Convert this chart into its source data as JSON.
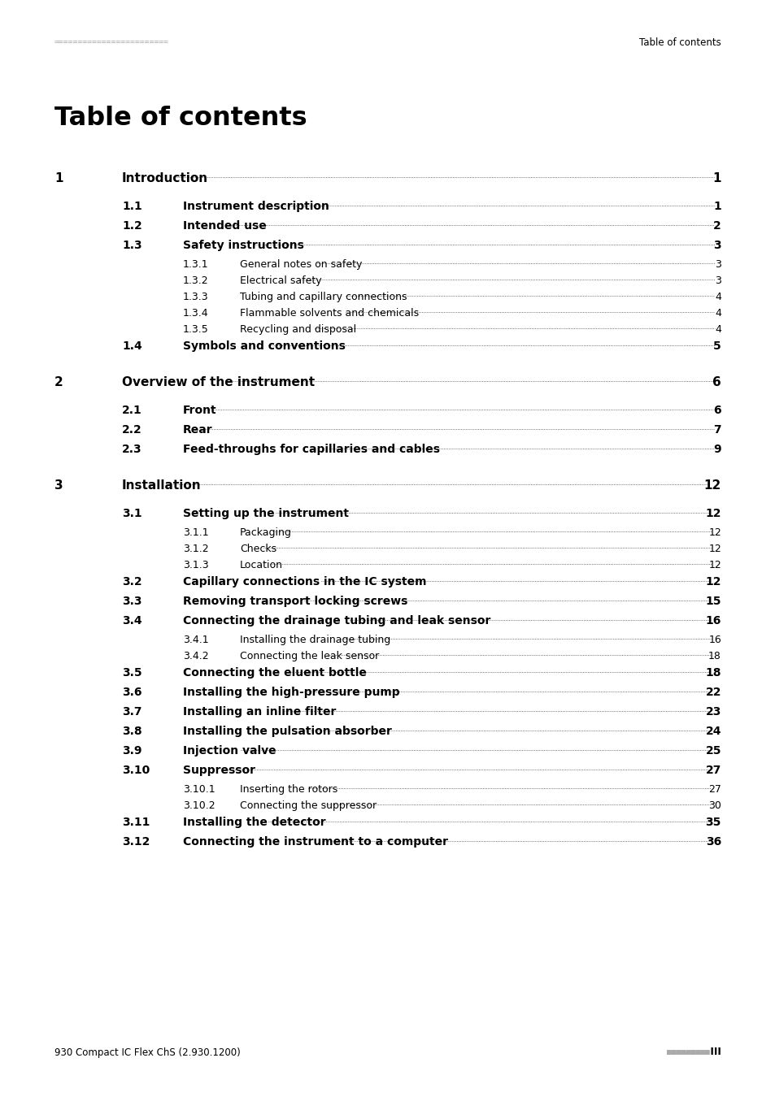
{
  "header_left_text": "========================",
  "header_right_text": "Table of contents",
  "title": "Table of contents",
  "footer_left": "930 Compact IC Flex ChS (2.930.1200)",
  "footer_right_dots": "■■■■■■■■■",
  "footer_right_num": " III",
  "bg_color": "#ffffff",
  "text_color": "#000000",
  "header_color": "#aaaaaa",
  "entries": [
    {
      "level": 1,
      "num": "1",
      "text": "Introduction",
      "page": "1",
      "bold": true
    },
    {
      "level": 2,
      "num": "1.1",
      "text": "Instrument description",
      "page": "1",
      "bold": true
    },
    {
      "level": 2,
      "num": "1.2",
      "text": "Intended use",
      "page": "2",
      "bold": true
    },
    {
      "level": 2,
      "num": "1.3",
      "text": "Safety instructions",
      "page": "3",
      "bold": true
    },
    {
      "level": 3,
      "num": "1.3.1",
      "text": "General notes on safety",
      "page": "3",
      "bold": false
    },
    {
      "level": 3,
      "num": "1.3.2",
      "text": "Electrical safety",
      "page": "3",
      "bold": false
    },
    {
      "level": 3,
      "num": "1.3.3",
      "text": "Tubing and capillary connections",
      "page": "4",
      "bold": false
    },
    {
      "level": 3,
      "num": "1.3.4",
      "text": "Flammable solvents and chemicals",
      "page": "4",
      "bold": false
    },
    {
      "level": 3,
      "num": "1.3.5",
      "text": "Recycling and disposal",
      "page": "4",
      "bold": false
    },
    {
      "level": 2,
      "num": "1.4",
      "text": "Symbols and conventions",
      "page": "5",
      "bold": true
    },
    {
      "level": 1,
      "num": "2",
      "text": "Overview of the instrument",
      "page": "6",
      "bold": true
    },
    {
      "level": 2,
      "num": "2.1",
      "text": "Front",
      "page": "6",
      "bold": true
    },
    {
      "level": 2,
      "num": "2.2",
      "text": "Rear",
      "page": "7",
      "bold": true
    },
    {
      "level": 2,
      "num": "2.3",
      "text": "Feed-throughs for capillaries and cables",
      "page": "9",
      "bold": true
    },
    {
      "level": 1,
      "num": "3",
      "text": "Installation",
      "page": "12",
      "bold": true
    },
    {
      "level": 2,
      "num": "3.1",
      "text": "Setting up the instrument",
      "page": "12",
      "bold": true
    },
    {
      "level": 3,
      "num": "3.1.1",
      "text": "Packaging",
      "page": "12",
      "bold": false
    },
    {
      "level": 3,
      "num": "3.1.2",
      "text": "Checks",
      "page": "12",
      "bold": false
    },
    {
      "level": 3,
      "num": "3.1.3",
      "text": "Location",
      "page": "12",
      "bold": false
    },
    {
      "level": 2,
      "num": "3.2",
      "text": "Capillary connections in the IC system",
      "page": "12",
      "bold": true
    },
    {
      "level": 2,
      "num": "3.3",
      "text": "Removing transport locking screws",
      "page": "15",
      "bold": true
    },
    {
      "level": 2,
      "num": "3.4",
      "text": "Connecting the drainage tubing and leak sensor",
      "page": "16",
      "bold": true
    },
    {
      "level": 3,
      "num": "3.4.1",
      "text": "Installing the drainage tubing",
      "page": "16",
      "bold": false
    },
    {
      "level": 3,
      "num": "3.4.2",
      "text": "Connecting the leak sensor",
      "page": "18",
      "bold": false
    },
    {
      "level": 2,
      "num": "3.5",
      "text": "Connecting the eluent bottle",
      "page": "18",
      "bold": true
    },
    {
      "level": 2,
      "num": "3.6",
      "text": "Installing the high-pressure pump",
      "page": "22",
      "bold": true
    },
    {
      "level": 2,
      "num": "3.7",
      "text": "Installing an inline filter",
      "page": "23",
      "bold": true
    },
    {
      "level": 2,
      "num": "3.8",
      "text": "Installing the pulsation absorber",
      "page": "24",
      "bold": true
    },
    {
      "level": 2,
      "num": "3.9",
      "text": "Injection valve",
      "page": "25",
      "bold": true
    },
    {
      "level": 2,
      "num": "3.10",
      "text": "Suppressor",
      "page": "27",
      "bold": true
    },
    {
      "level": 3,
      "num": "3.10.1",
      "text": "Inserting the rotors",
      "page": "27",
      "bold": false
    },
    {
      "level": 3,
      "num": "3.10.2",
      "text": "Connecting the suppressor",
      "page": "30",
      "bold": false
    },
    {
      "level": 2,
      "num": "3.11",
      "text": "Installing the detector",
      "page": "35",
      "bold": true
    },
    {
      "level": 2,
      "num": "3.12",
      "text": "Connecting the instrument to a computer",
      "page": "36",
      "bold": true
    }
  ]
}
